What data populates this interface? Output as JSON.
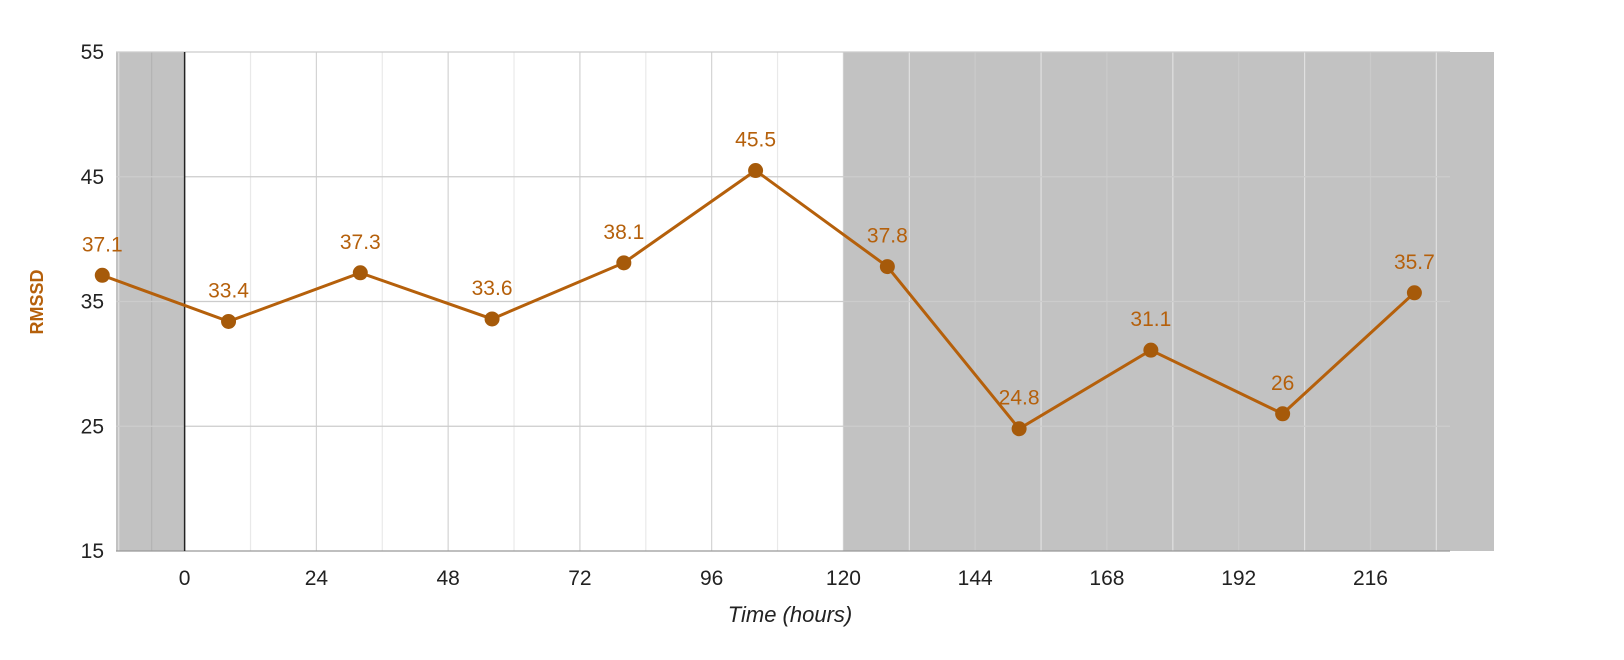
{
  "chart_data": {
    "type": "line",
    "title": "",
    "xlabel": "Time (hours)",
    "ylabel": "RMSSD",
    "xlim": [
      -12.5,
      238.5
    ],
    "ylim": [
      15,
      55
    ],
    "x_ticks": [
      0,
      24,
      48,
      72,
      96,
      120,
      144,
      168,
      192,
      216
    ],
    "y_ticks": [
      15,
      25,
      35,
      45,
      55
    ],
    "grid": true,
    "legend": "none",
    "shaded_regions": [
      {
        "x_start": -12.5,
        "x_end": 0
      },
      {
        "x_start": 120,
        "x_end": 238.5
      }
    ],
    "series": [
      {
        "color": "#b5600b",
        "x": [
          -15,
          8,
          32,
          56,
          80,
          104,
          128,
          152,
          176,
          200,
          224
        ],
        "values": [
          37.1,
          33.4,
          37.3,
          33.6,
          38.1,
          45.5,
          37.8,
          24.8,
          31.1,
          26,
          35.7
        ],
        "labels": [
          "37.1",
          "33.4",
          "37.3",
          "33.6",
          "38.1",
          "45.5",
          "37.8",
          "24.8",
          "31.1",
          "26",
          "35.7"
        ]
      }
    ],
    "colors": {
      "line": "#b5600b",
      "marker": "#a65a0a",
      "shade": "#c2c2c2",
      "grid_major": "#cccccc",
      "grid_minor": "#e6e6e6"
    }
  }
}
